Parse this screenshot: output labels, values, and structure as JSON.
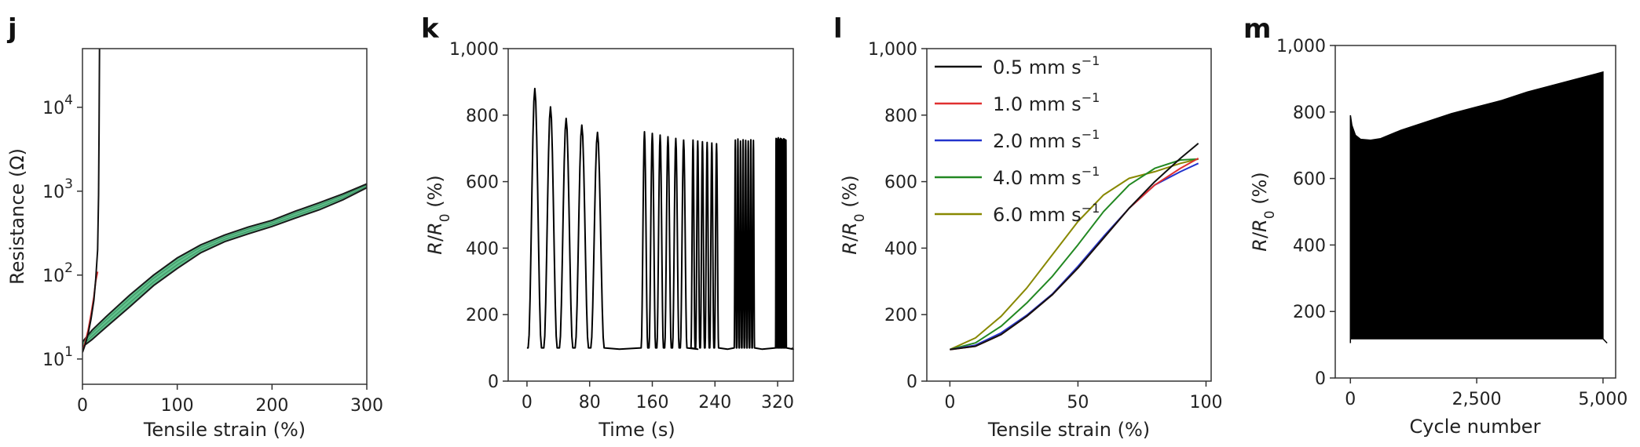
{
  "chart_data": [
    {
      "panel": "j",
      "type": "area",
      "xlabel": "Tensile strain (%)",
      "ylabel": "Resistance (Ω)",
      "yscale": "log",
      "xlim": [
        0,
        300
      ],
      "ylim": [
        5,
        50000
      ],
      "x_ticks": [
        "0",
        "100",
        "200",
        "300"
      ],
      "y_ticks": [
        {
          "base": "10",
          "exp": "1"
        },
        {
          "base": "10",
          "exp": "2"
        },
        {
          "base": "10",
          "exp": "3"
        },
        {
          "base": "10",
          "exp": "4"
        }
      ],
      "band": {
        "color": "#5fc28c",
        "x": [
          0,
          10,
          25,
          50,
          75,
          100,
          125,
          150,
          175,
          200,
          225,
          250,
          275,
          300
        ],
        "lower": [
          14,
          17,
          24,
          42,
          75,
          120,
          185,
          250,
          310,
          380,
          480,
          600,
          790,
          1100
        ],
        "upper": [
          16,
          22,
          32,
          58,
          100,
          160,
          230,
          300,
          375,
          450,
          580,
          730,
          930,
          1220
        ]
      },
      "series": [
        {
          "color": "#111111",
          "x": [
            0,
            3,
            6,
            9,
            12,
            14,
            16,
            17,
            17.5,
            18
          ],
          "y": [
            12,
            15,
            20,
            30,
            50,
            90,
            200,
            900,
            5000,
            50000
          ]
        },
        {
          "color": "#e03030",
          "x": [
            0,
            3,
            6,
            9,
            12,
            14,
            16
          ],
          "y": [
            12,
            16,
            22,
            34,
            55,
            85,
            110
          ]
        }
      ]
    },
    {
      "panel": "k",
      "type": "line",
      "xlabel": "Time (s)",
      "ylabel": "R/R0 (%)",
      "xlim": [
        -24,
        340
      ],
      "ylim": [
        0,
        1000
      ],
      "x_ticks": [
        "0",
        "80",
        "160",
        "240",
        "320"
      ],
      "y_ticks": [
        "0",
        "200",
        "400",
        "600",
        "800",
        "1,000"
      ],
      "segments": [
        {
          "start": 10,
          "period": 20,
          "count": 5,
          "peaks": [
            880,
            825,
            790,
            770,
            748
          ],
          "width": 8.5
        },
        {
          "start": 150,
          "period": 10,
          "count": 6,
          "peaks": [
            750,
            745,
            740,
            735,
            730,
            725
          ],
          "width": 4.2
        },
        {
          "start": 212,
          "period": 6,
          "count": 6,
          "peaks": [
            725,
            722,
            720,
            718,
            716,
            714
          ],
          "width": 2.6
        },
        {
          "start": 266,
          "period": 3.3,
          "count": 8,
          "peaks": [
            725,
            728,
            722,
            726,
            724,
            722,
            726,
            724
          ],
          "width": 1.4
        },
        {
          "start": 318,
          "period": 1.4,
          "count": 10,
          "peaks": [
            730,
            728,
            732,
            727,
            730,
            728,
            726,
            729,
            727,
            725
          ],
          "width": 0.6
        }
      ]
    },
    {
      "panel": "l",
      "type": "line",
      "xlabel": "Tensile strain (%)",
      "ylabel": "R/R0 (%)",
      "xlim": [
        -9,
        102
      ],
      "ylim": [
        0,
        1000
      ],
      "x_ticks": [
        "0",
        "50",
        "100"
      ],
      "y_ticks": [
        "0",
        "200",
        "400",
        "600",
        "800",
        "1,000"
      ],
      "legend": "upper-left",
      "series": [
        {
          "name": "0.5 mm s",
          "sup": "−1",
          "color": "#111111",
          "x": [
            0,
            10,
            20,
            30,
            40,
            50,
            60,
            70,
            80,
            90,
            97
          ],
          "y": [
            95,
            105,
            140,
            195,
            260,
            340,
            430,
            520,
            600,
            670,
            715
          ]
        },
        {
          "name": "1.0 mm s",
          "sup": "−1",
          "color": "#e03030",
          "x": [
            0,
            10,
            20,
            30,
            40,
            50,
            60,
            70,
            80,
            90,
            97
          ],
          "y": [
            95,
            105,
            140,
            195,
            260,
            340,
            430,
            520,
            590,
            640,
            670
          ]
        },
        {
          "name": "2.0 mm s",
          "sup": "−1",
          "color": "#2233cc",
          "x": [
            0,
            10,
            20,
            30,
            40,
            50,
            60,
            70,
            80,
            90,
            97
          ],
          "y": [
            95,
            108,
            145,
            198,
            262,
            345,
            435,
            520,
            590,
            630,
            655
          ]
        },
        {
          "name": "4.0 mm s",
          "sup": "−1",
          "color": "#228822",
          "x": [
            0,
            10,
            20,
            30,
            40,
            50,
            60,
            70,
            80,
            90,
            97
          ],
          "y": [
            95,
            115,
            165,
            235,
            315,
            410,
            510,
            590,
            640,
            665,
            668
          ]
        },
        {
          "name": "6.0 mm s",
          "sup": "−1",
          "color": "#888800",
          "x": [
            0,
            10,
            20,
            30,
            40,
            50,
            60,
            70,
            80,
            90,
            97
          ],
          "y": [
            95,
            130,
            195,
            280,
            380,
            480,
            560,
            610,
            630,
            655,
            668
          ]
        }
      ]
    },
    {
      "panel": "m",
      "type": "area",
      "xlabel": "Cycle number",
      "ylabel": "R/R0 (%)",
      "xlim": [
        -300,
        5250
      ],
      "ylim": [
        0,
        1000
      ],
      "x_ticks": [
        "0",
        "2,500",
        "5,000"
      ],
      "y_ticks": [
        "0",
        "200",
        "400",
        "600",
        "800",
        "1,000"
      ],
      "envelope": {
        "color": "#000000",
        "x": [
          0,
          30,
          100,
          200,
          400,
          600,
          1000,
          1500,
          2000,
          2500,
          3000,
          3500,
          4000,
          4500,
          5000
        ],
        "upper": [
          790,
          760,
          730,
          718,
          715,
          720,
          745,
          770,
          795,
          815,
          835,
          860,
          880,
          900,
          920
        ],
        "lower": [
          118,
          118,
          118,
          118,
          118,
          118,
          118,
          118,
          118,
          118,
          118,
          118,
          118,
          118,
          118
        ]
      }
    }
  ]
}
